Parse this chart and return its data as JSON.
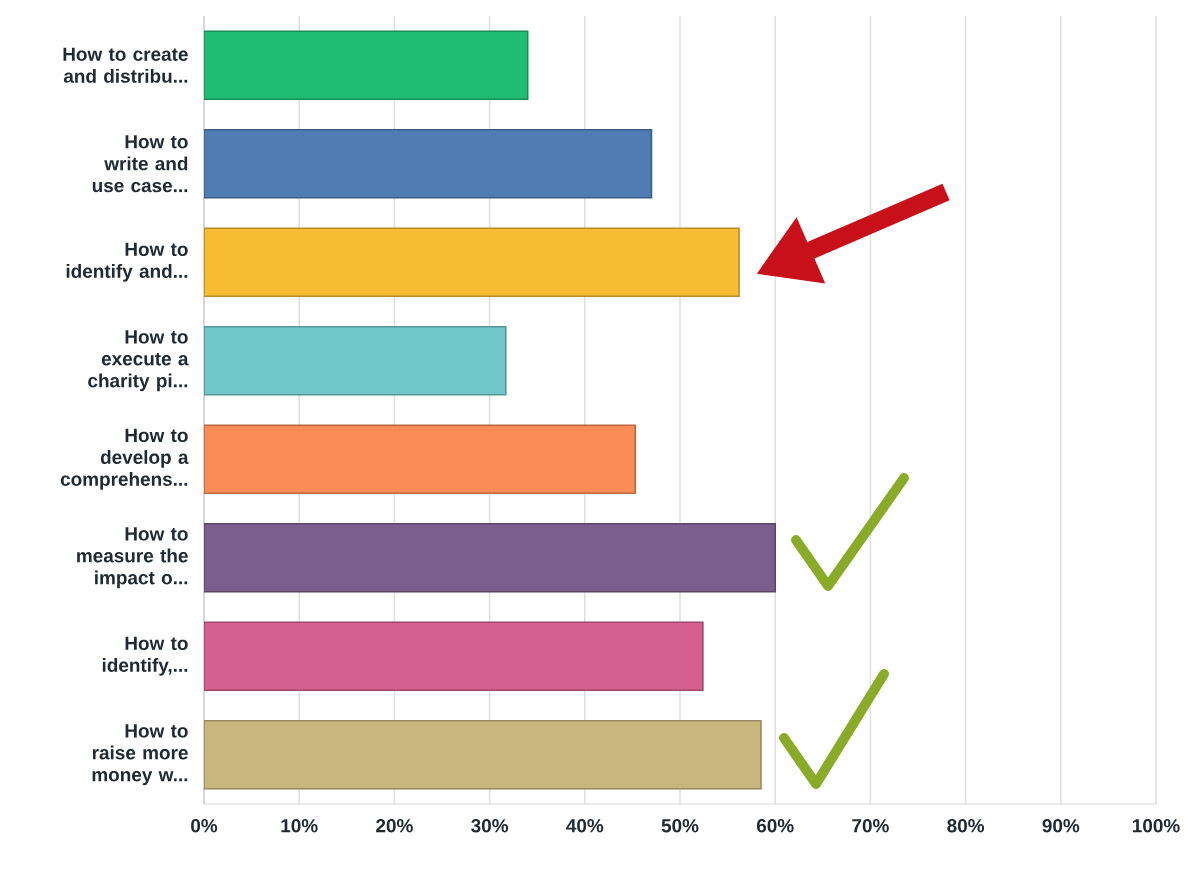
{
  "chart_data": {
    "type": "bar",
    "orientation": "horizontal",
    "categories": [
      "How to create and distribu...",
      "How to write and use case...",
      "How to identify and...",
      "How to execute a charity pi...",
      "How to develop a comprehens...",
      "How to measure the impact o...",
      "How to identify,...",
      "How to raise more money w..."
    ],
    "values": [
      34,
      47,
      56.2,
      31.7,
      45.3,
      60,
      52.4,
      58.5
    ],
    "colors": [
      "#1fbd73",
      "#507cb4",
      "#f6bc32",
      "#71c7c9",
      "#fb8c57",
      "#7b5e8e",
      "#d5608f",
      "#c8b67d"
    ],
    "xlim": [
      0,
      100
    ],
    "xticks": [
      {
        "value": 0,
        "label": "0%"
      },
      {
        "value": 10,
        "label": "10%"
      },
      {
        "value": 20,
        "label": "20%"
      },
      {
        "value": 30,
        "label": "30%"
      },
      {
        "value": 40,
        "label": "40%"
      },
      {
        "value": 50,
        "label": "50%"
      },
      {
        "value": 60,
        "label": "60%"
      },
      {
        "value": 70,
        "label": "70%"
      },
      {
        "value": 80,
        "label": "80%"
      },
      {
        "value": 90,
        "label": "90%"
      },
      {
        "value": 100,
        "label": "100%"
      }
    ],
    "grid": "x"
  }
}
